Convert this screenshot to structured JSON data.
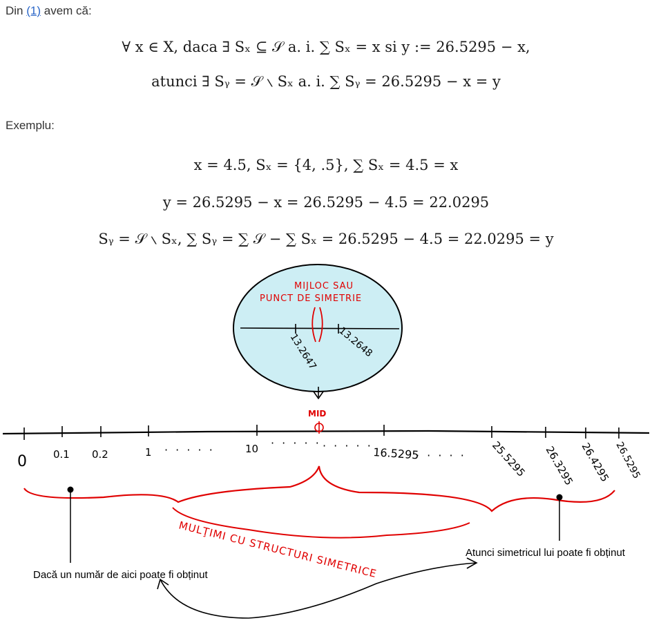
{
  "intro": {
    "prefix": "Din ",
    "ref_label": "(1)",
    "suffix": " avem că:"
  },
  "formula1": "∀ x ∈ X, daca ∃ Sₓ ⊆ 𝒮 a. i. ∑ Sₓ = x si y := 26.5295 − x,",
  "formula2": "atunci ∃ Sᵧ = 𝒮 ∖ Sₓ  a. i.  ∑ Sᵧ = 26.5295 − x = y",
  "example_label": "Exemplu:",
  "ex1": "x = 4.5,  Sₓ = {4, .5},  ∑ Sₓ = 4.5 = x",
  "ex2": "y = 26.5295 − x = 26.5295 − 4.5 = 22.0295",
  "ex3": "Sᵧ = 𝒮 ∖ Sₓ,  ∑ Sᵧ = ∑ 𝒮 − ∑ Sₓ = 26.5295 − 4.5 = 22.0295 = y",
  "zoom": {
    "title_line1": "MIJLOC SAU",
    "title_line2": "PUNCT DE SIMETRIE",
    "left_tick": "13.2647",
    "right_tick": "13.2648"
  },
  "mid_label": "MID",
  "ticks": [
    "0",
    "0.1",
    "0.2",
    "1",
    "10",
    "16.5295",
    "25.5295",
    "26.3295",
    "26.4295",
    "26.5295"
  ],
  "dots": "· · · · ·",
  "brace_label": "MULŢIMI CU STRUCTURI SIMETRICE",
  "caption_left": "Dacă un număr de aici poate fi obținut",
  "caption_right": "Atunci simetricul lui poate fi obținut",
  "colors": {
    "link": "#2a66c8",
    "zoom_fill": "#cdeef4",
    "ink_red": "#e00000"
  }
}
